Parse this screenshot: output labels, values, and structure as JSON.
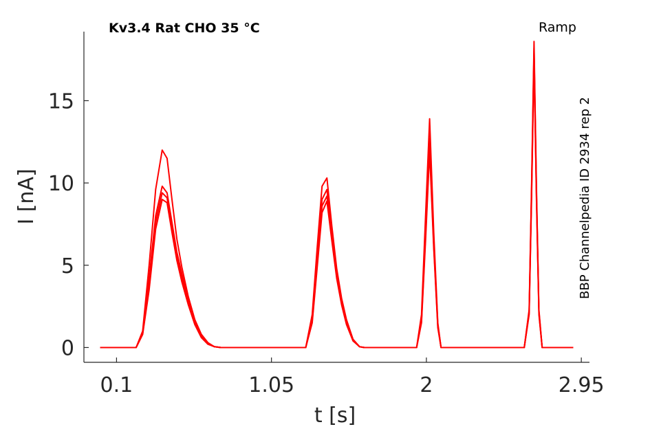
{
  "chart_data": {
    "type": "line",
    "title": "Kv3.4  Rat  CHO  35 °C",
    "protocol_label": "Ramp",
    "source_label": "BBP Channelpedia ID 2934 rep 2",
    "xlabel": "t [s]",
    "ylabel": "I [nA]",
    "xlim": [
      -0.1,
      3.0
    ],
    "ylim": [
      -0.9,
      20.2
    ],
    "xticks": [
      0.1,
      1.05,
      2,
      2.95
    ],
    "xtick_labels": [
      "0.1",
      "1.05",
      "2",
      "2.95"
    ],
    "yticks": [
      0,
      5,
      10,
      15
    ],
    "ytick_labels": [
      "0",
      "5",
      "10",
      "15"
    ],
    "grid": false,
    "legend": "none",
    "color": "#ff0000",
    "series": [
      {
        "x": [
          0.0,
          0.22,
          0.26,
          0.3,
          0.34,
          0.38,
          0.41,
          0.44,
          0.47,
          0.5,
          0.54,
          0.58,
          0.62,
          0.66,
          0.7,
          0.74,
          0.74,
          1.26,
          1.3,
          1.33,
          1.36,
          1.39,
          1.42,
          1.45,
          1.48,
          1.51,
          1.55,
          1.59,
          1.62,
          1.62,
          1.94,
          1.97,
          1.995,
          2.02,
          2.045,
          2.07,
          2.09,
          2.09,
          2.6,
          2.63,
          2.645,
          2.66,
          2.675,
          2.69,
          2.71,
          2.71,
          2.9
        ],
        "y": [
          0,
          0,
          0.8,
          3.5,
          7.2,
          9.0,
          8.8,
          7.0,
          5.3,
          4.0,
          2.6,
          1.4,
          0.6,
          0.2,
          0.05,
          0,
          0,
          0,
          1.5,
          4.8,
          8.2,
          8.9,
          6.5,
          4.2,
          2.6,
          1.4,
          0.4,
          0.05,
          0,
          0,
          0,
          1.5,
          6.5,
          11.9,
          6.0,
          1.2,
          0,
          0,
          0,
          2.0,
          9.0,
          17.5,
          9.0,
          2.0,
          0,
          0,
          0
        ]
      },
      {
        "x": [
          0.0,
          0.22,
          0.26,
          0.3,
          0.34,
          0.38,
          0.41,
          0.44,
          0.47,
          0.5,
          0.54,
          0.58,
          0.62,
          0.66,
          0.7,
          0.74,
          0.74,
          1.26,
          1.3,
          1.33,
          1.36,
          1.39,
          1.42,
          1.45,
          1.48,
          1.51,
          1.55,
          1.59,
          1.62,
          1.62,
          1.94,
          1.97,
          1.995,
          2.02,
          2.045,
          2.07,
          2.09,
          2.09,
          2.6,
          2.63,
          2.645,
          2.66,
          2.675,
          2.69,
          2.71,
          2.71,
          2.9
        ],
        "y": [
          0,
          0,
          0.8,
          3.8,
          7.6,
          9.4,
          9.1,
          7.2,
          5.5,
          4.2,
          2.7,
          1.5,
          0.7,
          0.25,
          0.05,
          0,
          0,
          0,
          1.6,
          5.0,
          8.6,
          9.2,
          6.7,
          4.3,
          2.7,
          1.5,
          0.45,
          0.05,
          0,
          0,
          0,
          1.6,
          6.8,
          12.3,
          6.2,
          1.3,
          0,
          0,
          0,
          2.1,
          9.3,
          17.9,
          9.3,
          2.1,
          0,
          0,
          0
        ]
      },
      {
        "x": [
          0.0,
          0.22,
          0.26,
          0.3,
          0.34,
          0.38,
          0.41,
          0.44,
          0.47,
          0.5,
          0.54,
          0.58,
          0.62,
          0.66,
          0.7,
          0.74,
          0.74,
          1.26,
          1.3,
          1.33,
          1.36,
          1.39,
          1.42,
          1.45,
          1.48,
          1.51,
          1.55,
          1.59,
          1.62,
          1.62,
          1.94,
          1.97,
          1.995,
          2.02,
          2.045,
          2.07,
          2.09,
          2.09,
          2.6,
          2.63,
          2.645,
          2.66,
          2.675,
          2.69,
          2.71,
          2.71,
          2.9
        ],
        "y": [
          0,
          0,
          0.9,
          4.2,
          8.0,
          9.8,
          9.4,
          7.6,
          5.8,
          4.5,
          2.9,
          1.6,
          0.75,
          0.25,
          0.05,
          0,
          0,
          0,
          1.7,
          5.3,
          9.0,
          9.6,
          6.9,
          4.5,
          2.8,
          1.6,
          0.5,
          0.05,
          0,
          0,
          0,
          1.7,
          7.2,
          12.7,
          6.5,
          1.4,
          0,
          0,
          0,
          2.2,
          9.5,
          18.2,
          9.5,
          2.2,
          0,
          0,
          0
        ]
      },
      {
        "x": [
          0.0,
          0.22,
          0.26,
          0.3,
          0.34,
          0.38,
          0.41,
          0.44,
          0.47,
          0.5,
          0.54,
          0.58,
          0.62,
          0.66,
          0.7,
          0.74,
          0.74,
          1.26,
          1.3,
          1.33,
          1.36,
          1.39,
          1.42,
          1.45,
          1.48,
          1.51,
          1.55,
          1.59,
          1.62,
          1.62,
          1.94,
          1.97,
          1.995,
          2.02,
          2.045,
          2.07,
          2.09,
          2.09,
          2.6,
          2.63,
          2.645,
          2.66,
          2.675,
          2.69,
          2.71,
          2.71,
          2.9
        ],
        "y": [
          0,
          0,
          1.0,
          5.0,
          9.6,
          12.0,
          11.5,
          9.0,
          6.6,
          4.9,
          3.1,
          1.7,
          0.8,
          0.3,
          0.05,
          0,
          0,
          0,
          2.0,
          6.0,
          9.8,
          10.3,
          7.4,
          4.8,
          3.0,
          1.7,
          0.5,
          0.05,
          0,
          0,
          0,
          2.0,
          8.0,
          13.9,
          7.0,
          1.5,
          0,
          0,
          0,
          2.3,
          9.8,
          18.6,
          9.8,
          2.3,
          0,
          0,
          0
        ]
      }
    ]
  }
}
